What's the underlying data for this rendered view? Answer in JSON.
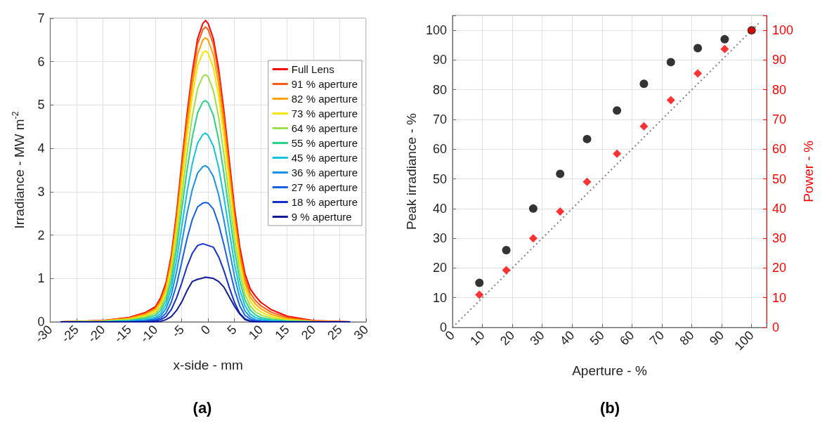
{
  "chart_data": [
    {
      "type": "line",
      "title": "(a)",
      "xlabel": "x-side - mm",
      "ylabel": "Irradiance - MW m$^{-2}$",
      "x": [
        -28,
        -20,
        -15,
        -12,
        -10,
        -9,
        -8,
        -7,
        -6,
        -5,
        -4,
        -3,
        -2,
        -1,
        -0.5,
        0,
        1,
        2,
        3,
        4,
        5,
        6,
        7,
        8,
        9,
        10,
        12,
        15,
        20,
        27
      ],
      "series": [
        {
          "name": "Full Lens",
          "color": "#ff0000",
          "values": [
            0,
            0.03,
            0.1,
            0.21,
            0.35,
            0.56,
            0.9,
            1.53,
            2.5,
            3.68,
            4.8,
            5.77,
            6.53,
            6.88,
            6.95,
            6.88,
            6.53,
            5.84,
            4.87,
            3.75,
            2.64,
            1.74,
            1.11,
            0.76,
            0.59,
            0.45,
            0.28,
            0.13,
            0.03,
            0
          ]
        },
        {
          "name": "91 % aperture",
          "color": "#ff5a14",
          "values": [
            0,
            0.03,
            0.09,
            0.19,
            0.32,
            0.51,
            0.84,
            1.45,
            2.4,
            3.55,
            4.68,
            5.65,
            6.4,
            6.74,
            6.8,
            6.74,
            6.4,
            5.7,
            4.73,
            3.6,
            2.5,
            1.62,
            1.0,
            0.66,
            0.49,
            0.37,
            0.22,
            0.1,
            0.02,
            0
          ]
        },
        {
          "name": "82 % aperture",
          "color": "#ffa200",
          "values": [
            0,
            0.02,
            0.08,
            0.17,
            0.29,
            0.47,
            0.78,
            1.36,
            2.28,
            3.4,
            4.5,
            5.45,
            6.17,
            6.5,
            6.55,
            6.5,
            6.15,
            5.47,
            4.52,
            3.42,
            2.36,
            1.5,
            0.9,
            0.57,
            0.41,
            0.3,
            0.17,
            0.07,
            0.01,
            0
          ]
        },
        {
          "name": "73 % aperture",
          "color": "#f2e600",
          "values": [
            0,
            0.02,
            0.06,
            0.14,
            0.25,
            0.41,
            0.7,
            1.25,
            2.12,
            3.2,
            4.28,
            5.2,
            5.9,
            6.2,
            6.25,
            6.2,
            5.86,
            5.2,
            4.28,
            3.22,
            2.2,
            1.36,
            0.78,
            0.47,
            0.32,
            0.23,
            0.12,
            0.05,
            0.01,
            0
          ]
        },
        {
          "name": "64 % aperture",
          "color": "#9ee04a",
          "values": [
            0,
            0.01,
            0.05,
            0.11,
            0.2,
            0.34,
            0.6,
            1.1,
            1.9,
            2.9,
            3.9,
            4.74,
            5.38,
            5.66,
            5.7,
            5.65,
            5.33,
            4.72,
            3.86,
            2.88,
            1.93,
            1.16,
            0.63,
            0.36,
            0.23,
            0.16,
            0.08,
            0.03,
            0,
            0
          ]
        },
        {
          "name": "55 % aperture",
          "color": "#2ecf86",
          "values": [
            0,
            0.01,
            0.03,
            0.08,
            0.15,
            0.27,
            0.5,
            0.95,
            1.68,
            2.6,
            3.5,
            4.26,
            4.82,
            5.07,
            5.1,
            5.05,
            4.76,
            4.2,
            3.42,
            2.53,
            1.66,
            0.96,
            0.5,
            0.27,
            0.16,
            0.1,
            0.05,
            0.02,
            0,
            0
          ]
        },
        {
          "name": "45 % aperture",
          "color": "#12c2de",
          "values": [
            0,
            0,
            0.02,
            0.05,
            0.1,
            0.2,
            0.4,
            0.78,
            1.42,
            2.2,
            3.0,
            3.65,
            4.12,
            4.32,
            4.35,
            4.3,
            4.05,
            3.56,
            2.88,
            2.1,
            1.35,
            0.75,
            0.37,
            0.18,
            0.1,
            0.06,
            0.03,
            0.01,
            0,
            0
          ]
        },
        {
          "name": "36 % aperture",
          "color": "#1a8fe8",
          "values": [
            0,
            0,
            0.01,
            0.03,
            0.07,
            0.14,
            0.3,
            0.62,
            1.15,
            1.82,
            2.5,
            3.05,
            3.43,
            3.58,
            3.6,
            3.56,
            3.35,
            2.93,
            2.35,
            1.68,
            1.05,
            0.55,
            0.25,
            0.11,
            0.05,
            0.03,
            0.01,
            0,
            0,
            0
          ]
        },
        {
          "name": "27 % aperture",
          "color": "#1460e0",
          "values": [
            0,
            0,
            0,
            0.02,
            0.04,
            0.09,
            0.2,
            0.45,
            0.85,
            1.38,
            1.92,
            2.36,
            2.65,
            2.74,
            2.75,
            2.74,
            2.6,
            2.25,
            1.78,
            1.25,
            0.75,
            0.37,
            0.15,
            0.06,
            0.02,
            0.01,
            0,
            0,
            null,
            null
          ]
        },
        {
          "name": "18 % aperture",
          "color": "#1530c8",
          "values": [
            0,
            0,
            0,
            0,
            0.02,
            0.05,
            0.12,
            0.28,
            0.55,
            0.9,
            1.28,
            1.58,
            1.76,
            1.8,
            1.78,
            1.76,
            1.72,
            1.5,
            1.18,
            0.8,
            0.45,
            0.2,
            0.07,
            0.02,
            0.01,
            0,
            0,
            null,
            null,
            null
          ]
        },
        {
          "name": "9 % aperture",
          "color": "#101a96",
          "values": [
            0,
            0,
            0,
            0,
            0,
            0.01,
            0.05,
            0.12,
            0.26,
            0.46,
            0.72,
            0.93,
            0.98,
            1.01,
            1.03,
            1.02,
            1.0,
            0.93,
            0.8,
            0.58,
            0.36,
            0.18,
            0.05,
            0.01,
            0,
            0,
            0,
            0,
            0,
            0
          ]
        }
      ],
      "xlim": [
        -30,
        30
      ],
      "xticks": [
        -30,
        -25,
        -20,
        -15,
        -10,
        -5,
        0,
        5,
        10,
        15,
        20,
        25,
        30
      ],
      "ylim": [
        0,
        7
      ],
      "yticks": [
        0,
        1,
        2,
        3,
        4,
        5,
        6,
        7
      ],
      "grid": true,
      "legend": "right",
      "marker": "none",
      "line_style": "solid"
    },
    {
      "type": "scatter",
      "title": "(b)",
      "xlabel": "Aperture - %",
      "ylabel": "Peak irradiance - %",
      "y2label": "Power - %",
      "series": [
        {
          "color": "#000000",
          "marker": "circle",
          "x": [
            9,
            18,
            27,
            36,
            45,
            55,
            64,
            73,
            82,
            91,
            100
          ],
          "values": [
            15,
            26,
            40,
            51.7,
            63.4,
            73,
            82,
            89.3,
            94,
            97,
            100
          ]
        },
        {
          "color": "#ff0000",
          "marker": "diamond",
          "axis": "y2",
          "x": [
            9,
            18,
            27,
            36,
            45,
            55,
            64,
            73,
            82,
            91,
            100
          ],
          "values": [
            11,
            19.3,
            30,
            39,
            49,
            58.5,
            67.7,
            76.5,
            85.5,
            93.7,
            100
          ]
        },
        {
          "type": "line",
          "color": "#7f7f7f",
          "marker": "none",
          "line_style": "dotted",
          "x": [
            0,
            103
          ],
          "values": [
            0,
            103
          ]
        }
      ],
      "xlim": [
        0,
        105
      ],
      "xticks": [
        0,
        10,
        20,
        30,
        40,
        50,
        60,
        70,
        80,
        90,
        100
      ],
      "ylim": [
        0,
        105
      ],
      "yticks": [
        0,
        10,
        20,
        30,
        40,
        50,
        60,
        70,
        80,
        90,
        100
      ],
      "y2lim": [
        0,
        105
      ],
      "y2ticks": [
        0,
        10,
        20,
        30,
        40,
        50,
        60,
        70,
        80,
        90,
        100
      ],
      "grid": true
    }
  ]
}
